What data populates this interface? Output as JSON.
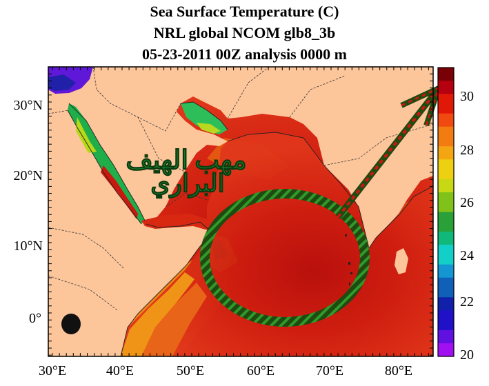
{
  "title": {
    "line1": "Sea Surface Temperature (C)",
    "line2": "NRL global NCOM glb8_3b",
    "line3": "05-23-2011 00Z analysis   0000 m"
  },
  "map": {
    "lon_ticks": [
      "30°E",
      "40°E",
      "50°E",
      "60°E",
      "70°E",
      "80°E"
    ],
    "lat_ticks": [
      "30°N",
      "20°N",
      "10°N",
      "0°"
    ],
    "land_color": "#fcc59a",
    "ocean_warm_color": "#d42010",
    "annotation_text_1": "مهب الهيف",
    "annotation_text_2": "البراري",
    "circle_icon": "hatched-circle-annotation",
    "arrow_icon": "arrow-annotation"
  },
  "colorbar": {
    "tick_labels": [
      "30",
      "28",
      "26",
      "24",
      "22",
      "20"
    ],
    "min": 20,
    "max": 31,
    "colors_top_to_bottom": [
      "#7a0008",
      "#b50010",
      "#e01808",
      "#f04a10",
      "#f27c12",
      "#f4a512",
      "#eed012",
      "#c8d814",
      "#80c21a",
      "#2aa038",
      "#10b87a",
      "#12cfc8",
      "#1496d2",
      "#1060b8",
      "#1020a8",
      "#2010c8",
      "#6010e0",
      "#a010f0"
    ]
  }
}
